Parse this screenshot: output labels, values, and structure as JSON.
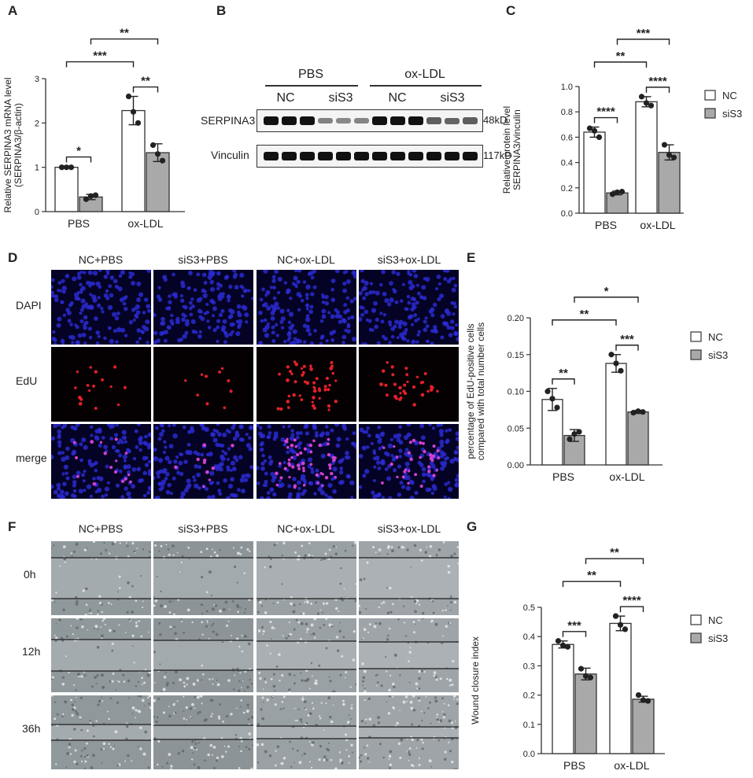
{
  "panels": {
    "A": "A",
    "B": "B",
    "C": "C",
    "D": "D",
    "E": "E",
    "F": "F",
    "G": "G"
  },
  "legend": {
    "nc": "NC",
    "si": "siS3"
  },
  "colors": {
    "nc": "#ffffff",
    "si": "#a9a9a9",
    "stroke": "#333333"
  },
  "blot": {
    "group_pbs": "PBS",
    "group_ox": "ox-LDL",
    "nc1": "NC",
    "si1": "siS3",
    "nc2": "NC",
    "si2": "siS3",
    "row1": "SERPINA3",
    "row1_kd": "48kD",
    "row2": "Vinculin",
    "row2_kd": "117kD",
    "row1_intensity": [
      1,
      1,
      1,
      0.35,
      0.3,
      0.32,
      1,
      1,
      1,
      0.55,
      0.5,
      0.55
    ],
    "row2_intensity": [
      1,
      1,
      1,
      1,
      1,
      1,
      1,
      1,
      1,
      1,
      1,
      1
    ]
  },
  "edu_images": {
    "cols": [
      "NC+PBS",
      "siS3+PBS",
      "NC+ox-LDL",
      "siS3+ox-LDL"
    ],
    "rows": [
      "DAPI",
      "EdU",
      "merge"
    ],
    "edu_density": [
      16,
      10,
      50,
      32
    ]
  },
  "wound_images": {
    "cols": [
      "NC+PBS",
      "siS3+PBS",
      "NC+ox-LDL",
      "siS3+ox-LDL"
    ],
    "rows": [
      "0h",
      "12h",
      "36h"
    ]
  },
  "chart_data": [
    {
      "panel": "A",
      "type": "bar",
      "categories": [
        "PBS",
        "ox-LDL"
      ],
      "series": [
        {
          "name": "NC",
          "values": [
            1.0,
            2.28
          ],
          "errors": [
            0.02,
            0.32
          ],
          "points": [
            [
              1.0,
              1.0,
              1.0
            ],
            [
              2.6,
              2.25,
              2.0
            ]
          ]
        },
        {
          "name": "siS3",
          "values": [
            0.33,
            1.33
          ],
          "errors": [
            0.06,
            0.2
          ],
          "points": [
            [
              0.28,
              0.35,
              0.37
            ],
            [
              1.5,
              1.3,
              1.15
            ]
          ]
        }
      ],
      "ylabel": "Relative SERPINA3 mRNA level\n(SERPINA3/β-actin)",
      "ylim": [
        0,
        3
      ],
      "yticks": [
        "0",
        "1",
        "2",
        "3"
      ],
      "significance": [
        {
          "label": "*",
          "from": [
            0,
            0
          ],
          "to": [
            0,
            1
          ]
        },
        {
          "label": "**",
          "from": [
            1,
            0
          ],
          "to": [
            1,
            1
          ]
        },
        {
          "label": "***",
          "from": [
            0,
            0
          ],
          "to": [
            1,
            0
          ]
        },
        {
          "label": "**",
          "from": [
            0,
            1
          ],
          "to": [
            1,
            1
          ]
        }
      ]
    },
    {
      "panel": "C",
      "type": "bar",
      "categories": [
        "PBS",
        "ox-LDL"
      ],
      "series": [
        {
          "name": "NC",
          "values": [
            0.64,
            0.88
          ],
          "errors": [
            0.04,
            0.04
          ],
          "points": [
            [
              0.67,
              0.65,
              0.6
            ],
            [
              0.92,
              0.87,
              0.85
            ]
          ]
        },
        {
          "name": "siS3",
          "values": [
            0.16,
            0.48
          ],
          "errors": [
            0.015,
            0.06
          ],
          "points": [
            [
              0.15,
              0.165,
              0.17
            ],
            [
              0.54,
              0.46,
              0.44
            ]
          ]
        }
      ],
      "ylabel": "Relative protein level\nSERPINA3/vinculin",
      "ylim": [
        0,
        1.0
      ],
      "yticks": [
        "0.0",
        "0.2",
        "0.4",
        "0.6",
        "0.8",
        "1.0"
      ],
      "significance": [
        {
          "label": "****",
          "from": [
            0,
            0
          ],
          "to": [
            0,
            1
          ]
        },
        {
          "label": "****",
          "from": [
            1,
            0
          ],
          "to": [
            1,
            1
          ]
        },
        {
          "label": "**",
          "from": [
            0,
            0
          ],
          "to": [
            1,
            0
          ]
        },
        {
          "label": "***",
          "from": [
            0,
            1
          ],
          "to": [
            1,
            1
          ]
        }
      ]
    },
    {
      "panel": "E",
      "type": "bar",
      "categories": [
        "PBS",
        "ox-LDL"
      ],
      "series": [
        {
          "name": "NC",
          "values": [
            0.089,
            0.138
          ],
          "errors": [
            0.015,
            0.012
          ],
          "points": [
            [
              0.1,
              0.09,
              0.078
            ],
            [
              0.15,
              0.138,
              0.128
            ]
          ]
        },
        {
          "name": "siS3",
          "values": [
            0.04,
            0.072
          ],
          "errors": [
            0.008,
            0.002
          ],
          "points": [
            [
              0.035,
              0.042,
              0.045
            ],
            [
              0.071,
              0.073,
              0.072
            ]
          ]
        }
      ],
      "ylabel": "percentage of EdU-positive cells\ncompared with total number cells",
      "ylim": [
        0,
        0.2
      ],
      "yticks": [
        "0.00",
        "0.05",
        "0.10",
        "0.15",
        "0.20"
      ],
      "significance": [
        {
          "label": "**",
          "from": [
            0,
            0
          ],
          "to": [
            0,
            1
          ]
        },
        {
          "label": "***",
          "from": [
            1,
            0
          ],
          "to": [
            1,
            1
          ]
        },
        {
          "label": "**",
          "from": [
            0,
            0
          ],
          "to": [
            1,
            0
          ]
        },
        {
          "label": "*",
          "from": [
            0,
            1
          ],
          "to": [
            1,
            1
          ]
        }
      ]
    },
    {
      "panel": "G",
      "type": "bar",
      "categories": [
        "PBS",
        "ox-LDL"
      ],
      "series": [
        {
          "name": "NC",
          "values": [
            0.373,
            0.445
          ],
          "errors": [
            0.012,
            0.025
          ],
          "points": [
            [
              0.385,
              0.37,
              0.365
            ],
            [
              0.47,
              0.44,
              0.425
            ]
          ]
        },
        {
          "name": "siS3",
          "values": [
            0.272,
            0.186
          ],
          "errors": [
            0.02,
            0.01
          ],
          "points": [
            [
              0.29,
              0.265,
              0.26
            ],
            [
              0.2,
              0.183,
              0.18
            ]
          ]
        }
      ],
      "ylabel": "Wound closure index",
      "ylim": [
        0,
        0.5
      ],
      "yticks": [
        "0.0",
        "0.1",
        "0.2",
        "0.3",
        "0.4",
        "0.5"
      ],
      "significance": [
        {
          "label": "***",
          "from": [
            0,
            0
          ],
          "to": [
            0,
            1
          ]
        },
        {
          "label": "****",
          "from": [
            1,
            0
          ],
          "to": [
            1,
            1
          ]
        },
        {
          "label": "**",
          "from": [
            0,
            0
          ],
          "to": [
            1,
            0
          ]
        },
        {
          "label": "**",
          "from": [
            0,
            1
          ],
          "to": [
            1,
            1
          ]
        }
      ]
    }
  ]
}
